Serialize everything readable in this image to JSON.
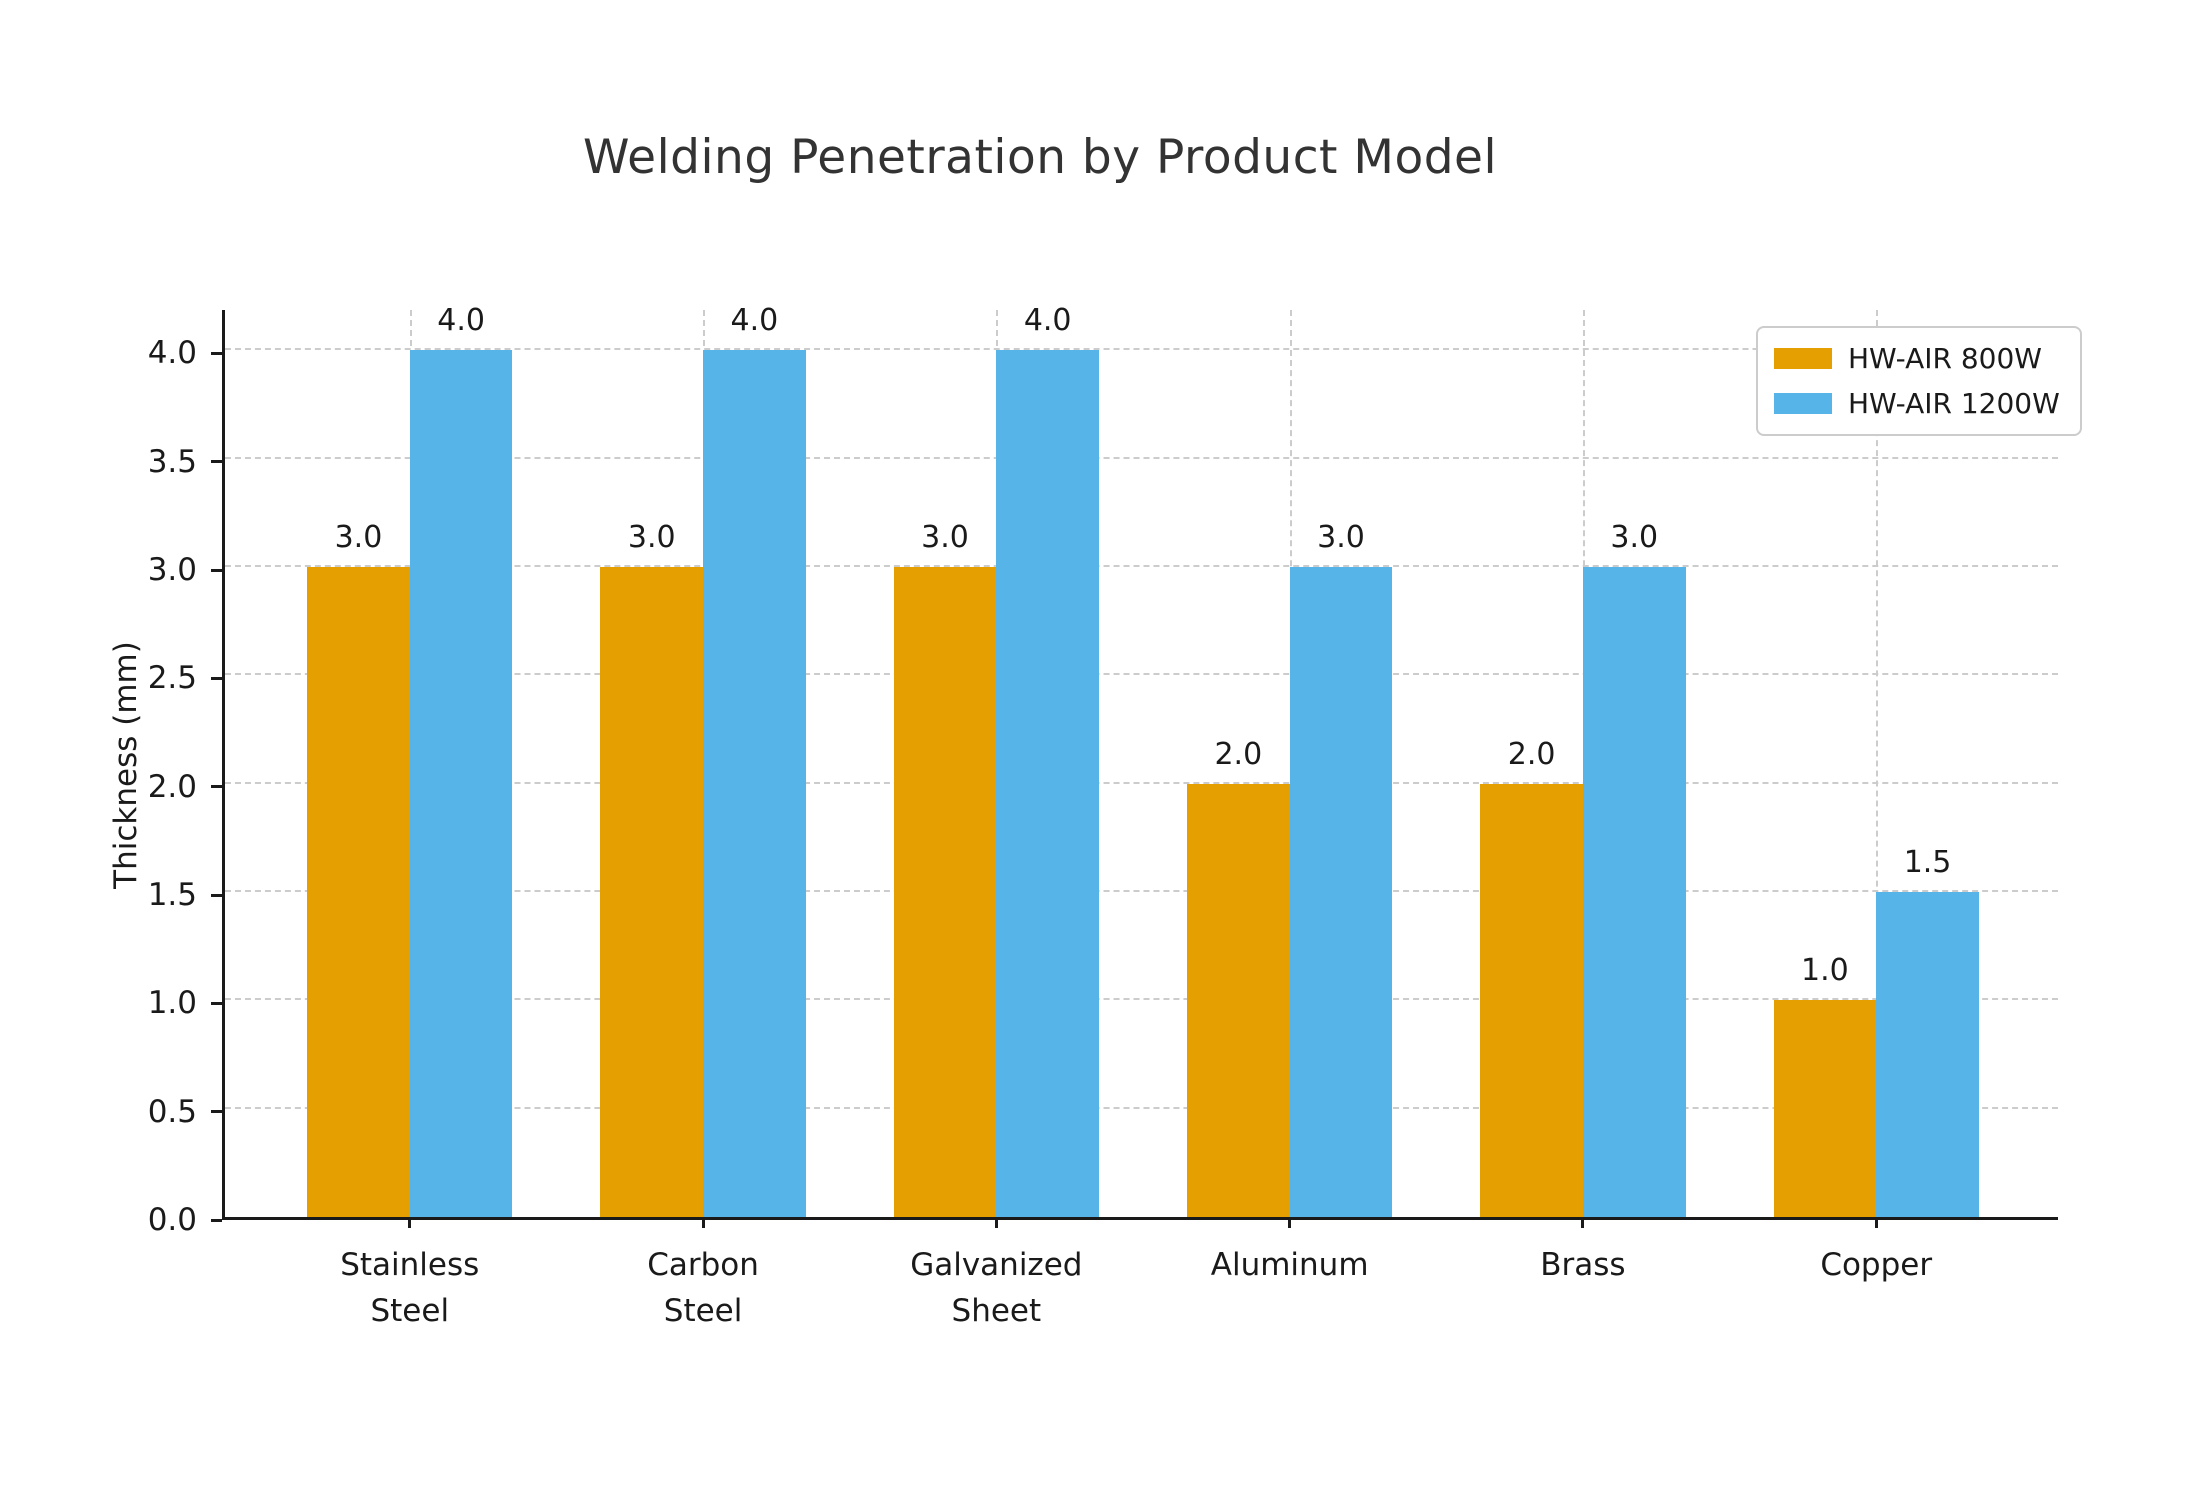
{
  "chart_data": {
    "type": "bar",
    "title": "Welding Penetration by Product Model",
    "ylabel": "Thickness (mm)",
    "xlabel": "",
    "categories": [
      "Stainless\nSteel",
      "Carbon\nSteel",
      "Galvanized\nSheet",
      "Aluminum",
      "Brass",
      "Copper"
    ],
    "series": [
      {
        "name": "HW-AIR 800W",
        "color": "#E69F00",
        "values": [
          3.0,
          3.0,
          3.0,
          2.0,
          2.0,
          1.0
        ]
      },
      {
        "name": "HW-AIR 1200W",
        "color": "#56B4E9",
        "values": [
          4.0,
          4.0,
          4.0,
          3.0,
          3.0,
          1.5
        ]
      }
    ],
    "yticks": [
      0.0,
      0.5,
      1.0,
      1.5,
      2.0,
      2.5,
      3.0,
      3.5,
      4.0
    ],
    "ylim": [
      0,
      4.2
    ],
    "bar_width_units": 0.35,
    "x_margin_units": 0.63,
    "grid": true,
    "grid_style": "dashed",
    "legend_position": "upper right",
    "bar_value_labels": true,
    "value_label_decimals": 1
  },
  "styles": {
    "grid_color": "#cccccc",
    "axis_color": "#1a1a1a",
    "text_color": "#1a1a1a",
    "title_color": "#333333",
    "legend_border_color": "#cccccc",
    "background_color": "#ffffff"
  }
}
